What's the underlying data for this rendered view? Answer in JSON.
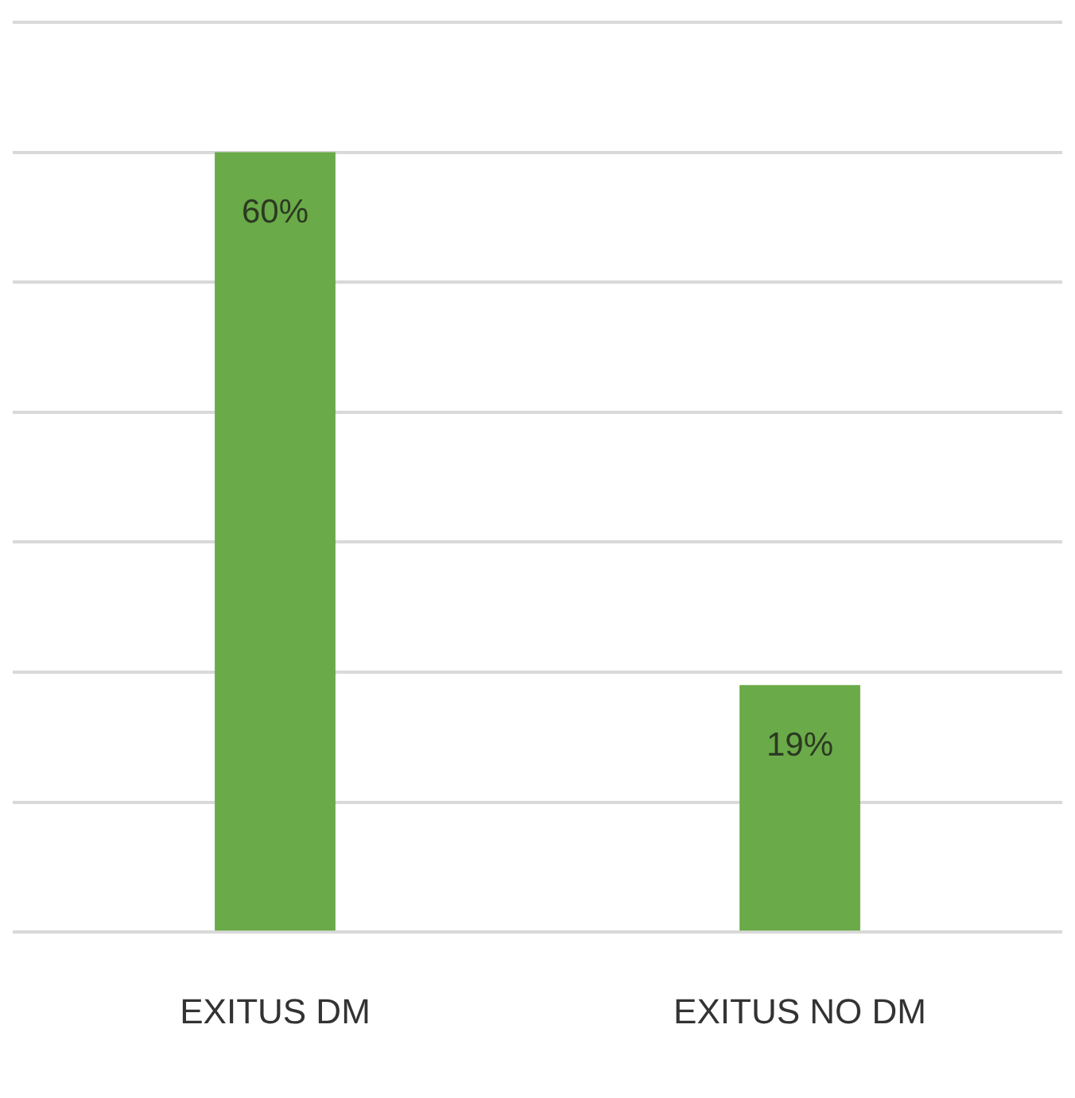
{
  "chart_data": {
    "type": "bar",
    "categories": [
      "EXITUS DM",
      "EXITUS NO DM"
    ],
    "values": [
      60,
      19
    ],
    "value_labels": [
      "60%",
      "19%"
    ],
    "color": "#6aaa48",
    "ylim": [
      0,
      70
    ],
    "yticks": [
      {
        "value": 0,
        "label": null
      },
      {
        "value": 10,
        "label": null
      },
      {
        "value": 20,
        "label": null
      },
      {
        "value": 30,
        "label": null
      },
      {
        "value": 40,
        "label": null
      },
      {
        "value": 50,
        "label": null
      },
      {
        "value": 60,
        "label": null
      },
      {
        "value": 70,
        "label": null
      }
    ],
    "grid": "y",
    "tick_labels": "x",
    "legend": false
  }
}
